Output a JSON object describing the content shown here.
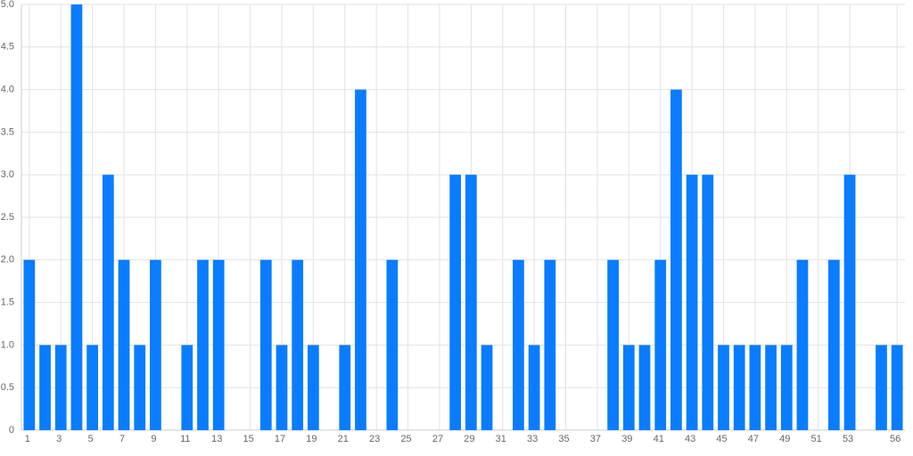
{
  "chart_data": {
    "type": "bar",
    "categories": [
      1,
      null,
      3,
      null,
      5,
      null,
      7,
      null,
      9,
      null,
      11,
      null,
      13,
      null,
      15,
      null,
      17,
      null,
      19,
      null,
      21,
      null,
      23,
      null,
      25,
      null,
      27,
      null,
      29,
      null,
      31,
      null,
      33,
      null,
      35,
      null,
      37,
      null,
      39,
      null,
      41,
      null,
      43,
      null,
      45,
      null,
      47,
      null,
      49,
      null,
      51,
      null,
      53,
      null,
      null,
      56
    ],
    "values": [
      2,
      1,
      1,
      5,
      1,
      3,
      2,
      1,
      2,
      0,
      1,
      2,
      2,
      0,
      0,
      2,
      1,
      2,
      1,
      0,
      1,
      4,
      0,
      2,
      0,
      0,
      0,
      3,
      3,
      1,
      0,
      2,
      1,
      2,
      0,
      0,
      0,
      2,
      1,
      1,
      2,
      4,
      3,
      3,
      1,
      1,
      1,
      1,
      1,
      2,
      0,
      2,
      3,
      0,
      1,
      1
    ],
    "color": "#0a7cff",
    "ylim": [
      0,
      5
    ],
    "yticks": [
      0,
      0.5,
      {
        "value": 1,
        "label": "1.0"
      },
      1.5,
      {
        "value": 2,
        "label": "2.0"
      },
      2.5,
      {
        "value": 3,
        "label": "3.0"
      },
      3.5,
      {
        "value": 4,
        "label": "4.0"
      },
      4.5,
      {
        "value": 5,
        "label": "5.0"
      }
    ],
    "grid": true
  }
}
